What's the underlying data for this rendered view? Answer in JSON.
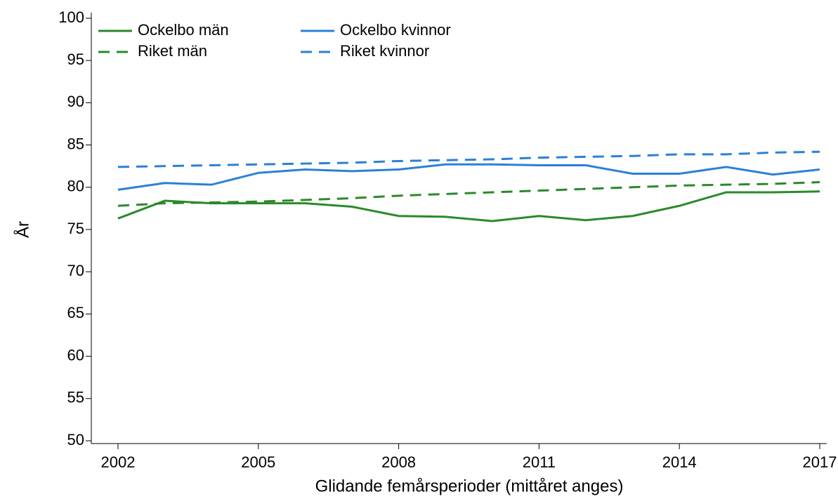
{
  "chart_data": {
    "type": "line",
    "x_label": "Glidande femårsperioder (mittåret anges)",
    "y_label": "År",
    "x": [
      2002,
      2003,
      2004,
      2005,
      2006,
      2007,
      2008,
      2009,
      2010,
      2011,
      2012,
      2013,
      2014,
      2015,
      2016,
      2017
    ],
    "series": [
      {
        "name": "Ockelbo män",
        "color": "#2a8a2a",
        "dashed": false,
        "values": [
          76.3,
          78.4,
          78.1,
          78.1,
          78.1,
          77.7,
          76.6,
          76.5,
          76.0,
          76.6,
          76.1,
          76.6,
          77.8,
          79.4,
          79.4,
          79.5
        ]
      },
      {
        "name": "Riket män",
        "color": "#2a8a2a",
        "dashed": true,
        "values": [
          77.8,
          78.1,
          78.2,
          78.3,
          78.5,
          78.7,
          79.0,
          79.2,
          79.4,
          79.6,
          79.8,
          80.0,
          80.2,
          80.3,
          80.4,
          80.6
        ]
      },
      {
        "name": "Ockelbo kvinnor",
        "color": "#2a80d8",
        "dashed": false,
        "values": [
          79.7,
          80.5,
          80.3,
          81.7,
          82.1,
          81.9,
          82.1,
          82.7,
          82.7,
          82.6,
          82.6,
          81.6,
          81.6,
          82.4,
          81.5,
          82.1
        ]
      },
      {
        "name": "Riket kvinnor",
        "color": "#2a80d8",
        "dashed": true,
        "values": [
          82.4,
          82.5,
          82.6,
          82.7,
          82.8,
          82.9,
          83.1,
          83.2,
          83.3,
          83.5,
          83.6,
          83.7,
          83.9,
          83.9,
          84.1,
          84.2
        ]
      }
    ],
    "xlim": [
      2001.43,
      2017.15
    ],
    "xticks": [
      2002,
      2005,
      2008,
      2011,
      2014,
      2017
    ],
    "ylim": [
      49.67,
      100.66
    ],
    "yticks": [
      50,
      55,
      60,
      65,
      70,
      75,
      80,
      85,
      90,
      95,
      100
    ],
    "legend": "top-left"
  }
}
